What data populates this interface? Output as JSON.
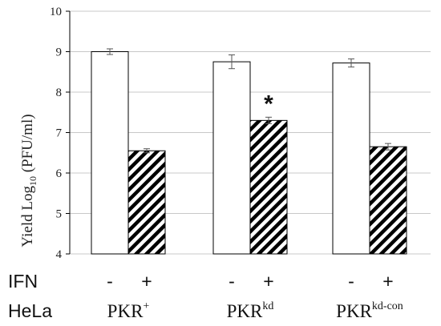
{
  "chart_data": {
    "type": "bar",
    "ylabel_main": "Yield  Log",
    "ylabel_sub": "10",
    "ylabel_tail": " (PFU/ml)",
    "ylim": [
      4,
      10
    ],
    "yticks": [
      4,
      5,
      6,
      7,
      8,
      9,
      10
    ],
    "grid": true,
    "groups": [
      {
        "hela_base": "PKR",
        "hela_sup": "+",
        "bars": [
          {
            "ifn": "-",
            "value": 9.0,
            "error": 0.07,
            "pattern": "open"
          },
          {
            "ifn": "+",
            "value": 6.55,
            "error": 0.05,
            "pattern": "hatched"
          }
        ]
      },
      {
        "hela_base": "PKR",
        "hela_sup": "kd",
        "bars": [
          {
            "ifn": "-",
            "value": 8.75,
            "error": 0.17,
            "pattern": "open"
          },
          {
            "ifn": "+",
            "value": 7.3,
            "error": 0.08,
            "pattern": "hatched",
            "annotation": "*"
          }
        ]
      },
      {
        "hela_base": "PKR",
        "hela_sup": "kd-con",
        "bars": [
          {
            "ifn": "-",
            "value": 8.72,
            "error": 0.1,
            "pattern": "open"
          },
          {
            "ifn": "+",
            "value": 6.65,
            "error": 0.08,
            "pattern": "hatched"
          }
        ]
      }
    ],
    "row_labels": {
      "ifn": "IFN",
      "hela": "HeLa"
    },
    "colors": {
      "bar_fill": "#ffffff",
      "bar_stroke": "#000000",
      "hatch": "#000000",
      "grid": "#c8c8c8",
      "axis": "#000000"
    }
  }
}
